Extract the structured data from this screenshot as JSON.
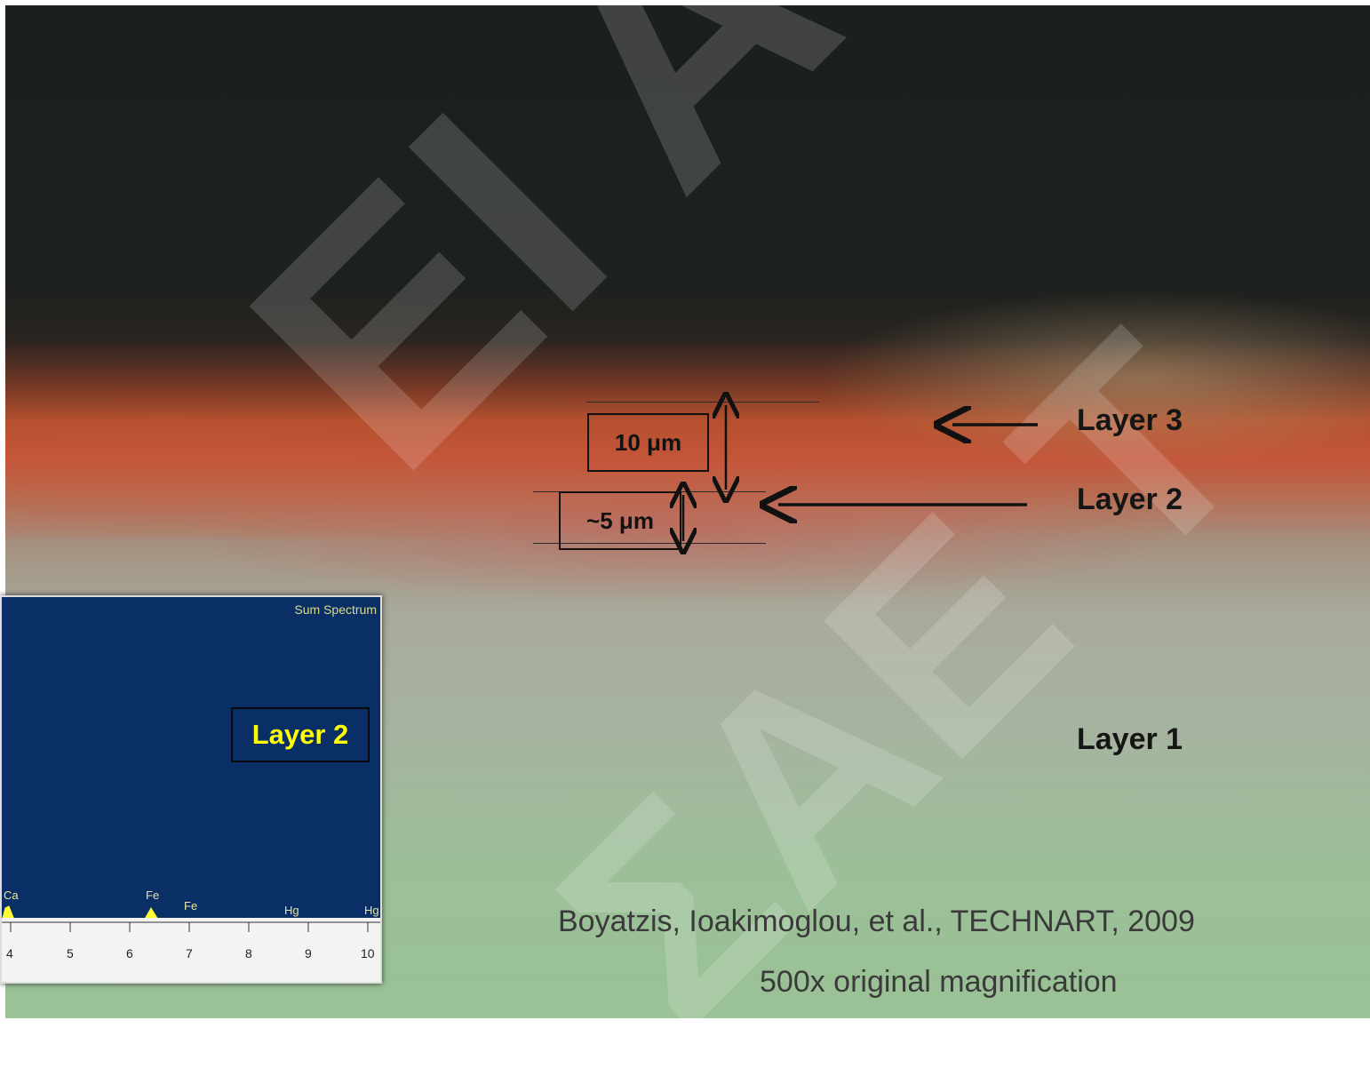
{
  "watermark": {
    "line1": "ΕΙ Αθήνα",
    "line2": "ΣΑΕ Τ"
  },
  "measurements": {
    "top_layer": "10 μm",
    "middle_layer": "~5 μm"
  },
  "labels": {
    "layer3": "Layer 3",
    "layer2": "Layer 2",
    "layer1": "Layer 1"
  },
  "inset": {
    "title": "Sum Spectrum",
    "label": "Layer 2",
    "peaks": [
      "Ca",
      "Fe",
      "Fe",
      "Hg",
      "Hg"
    ],
    "axis_ticks": [
      "4",
      "5",
      "6",
      "7",
      "8",
      "9",
      "10"
    ]
  },
  "caption": {
    "citation": "Boyatzis, Ioakimoglou, et al., TECHNART, 2009",
    "magnification": "500x original magnification"
  },
  "colors": {
    "inset_background": "#0a2e66",
    "inset_label": "#ffff00",
    "spectrum_line": "#ffff33",
    "pigment_layer": "#c4563a"
  }
}
